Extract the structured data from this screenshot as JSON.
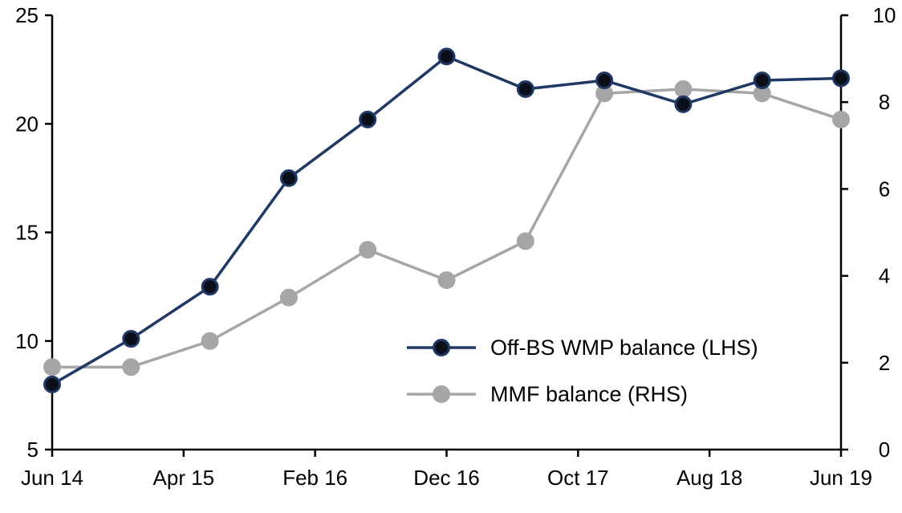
{
  "chart_data": {
    "type": "line",
    "title": "",
    "xlabel": "",
    "ylabel_left": "",
    "ylabel_right": "",
    "grid": false,
    "background": "#ffffff",
    "axis_color": "#000000",
    "legend_position": "inside-lower-right",
    "x_tick_labels": [
      "Jun 14",
      "Apr 15",
      "Feb 16",
      "Dec 16",
      "Oct 17",
      "Aug 18",
      "Jun 19"
    ],
    "x_tick_months": [
      0,
      10,
      20,
      30,
      40,
      50,
      60
    ],
    "x_total_months": 60,
    "point_labels": [
      "Jun 14",
      "Dec 14",
      "Jun 15",
      "Dec 15",
      "Jun 16",
      "Dec 16",
      "Jun 17",
      "Dec 17",
      "Jun 18",
      "Dec 18",
      "Jun 19"
    ],
    "point_months": [
      0,
      6,
      12,
      18,
      24,
      30,
      36,
      42,
      48,
      54,
      60
    ],
    "left_axis": {
      "min": 5,
      "max": 25,
      "ticks": [
        5,
        10,
        15,
        20,
        25
      ]
    },
    "right_axis": {
      "min": 0,
      "max": 10,
      "ticks": [
        0,
        2,
        4,
        6,
        8,
        10
      ]
    },
    "series": [
      {
        "name": "Off-BS WMP balance (LHS)",
        "axis": "left",
        "line_color": "#1f3864",
        "marker_fill": "#0b0f1a",
        "marker_stroke": "#1f3864",
        "values": [
          8.0,
          10.1,
          12.5,
          17.5,
          20.2,
          23.1,
          21.6,
          22.0,
          20.9,
          22.0,
          22.1
        ]
      },
      {
        "name": "MMF balance (RHS)",
        "axis": "right",
        "line_color": "#a6a6a6",
        "marker_fill": "#a6a6a6",
        "marker_stroke": "#a6a6a6",
        "values": [
          1.9,
          1.9,
          2.5,
          3.5,
          4.6,
          3.9,
          4.8,
          8.2,
          8.3,
          8.2,
          7.6
        ]
      }
    ]
  }
}
